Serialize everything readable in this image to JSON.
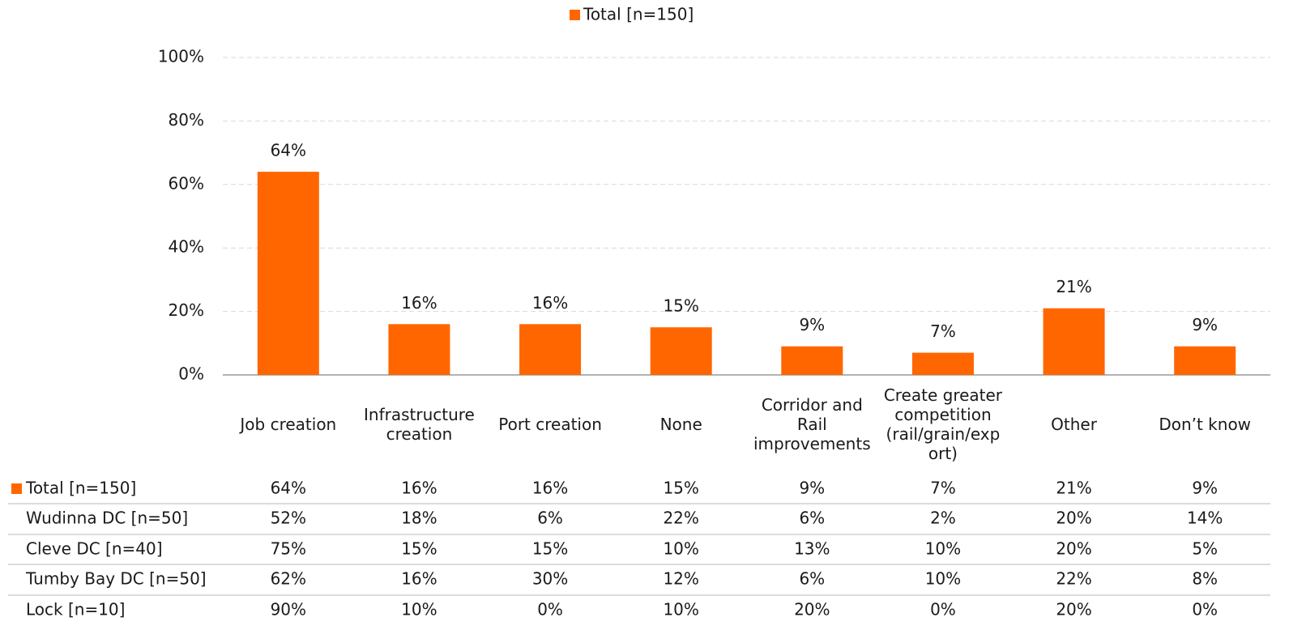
{
  "chart_data": {
    "type": "bar",
    "categories": [
      "Job creation",
      "Infrastructure creation",
      "Port creation",
      "None",
      "Corridor and Rail improvements",
      "Create greater competition (rail/grain/export)",
      "Other",
      "Don’t know"
    ],
    "series": [
      {
        "name": "Total [n=150]",
        "color": "#ff6600",
        "values": [
          64,
          16,
          16,
          15,
          9,
          7,
          21,
          9
        ],
        "value_labels": [
          "64%",
          "16%",
          "16%",
          "15%",
          "9%",
          "7%",
          "21%",
          "9%"
        ]
      }
    ],
    "ylim": [
      0,
      100
    ],
    "yticks": [
      {
        "value": 0,
        "label": "0%"
      },
      {
        "value": 20,
        "label": "20%"
      },
      {
        "value": 40,
        "label": "40%"
      },
      {
        "value": 60,
        "label": "60%"
      },
      {
        "value": 80,
        "label": "80%"
      },
      {
        "value": 100,
        "label": "100%"
      }
    ],
    "grid": true,
    "legend": "top",
    "table": {
      "rows": [
        {
          "name": "Wudinna DC [n=50]",
          "values": [
            "52%",
            "18%",
            "6%",
            "22%",
            "6%",
            "2%",
            "20%",
            "14%"
          ]
        },
        {
          "name": "Cleve DC [n=40]",
          "values": [
            "75%",
            "15%",
            "15%",
            "10%",
            "13%",
            "10%",
            "20%",
            "5%"
          ]
        },
        {
          "name": "Tumby Bay DC [n=50]",
          "values": [
            "62%",
            "16%",
            "30%",
            "12%",
            "6%",
            "10%",
            "22%",
            "8%"
          ]
        },
        {
          "name": "Lock [n=10]",
          "values": [
            "90%",
            "10%",
            "0%",
            "10%",
            "20%",
            "0%",
            "20%",
            "0%"
          ]
        }
      ]
    }
  }
}
